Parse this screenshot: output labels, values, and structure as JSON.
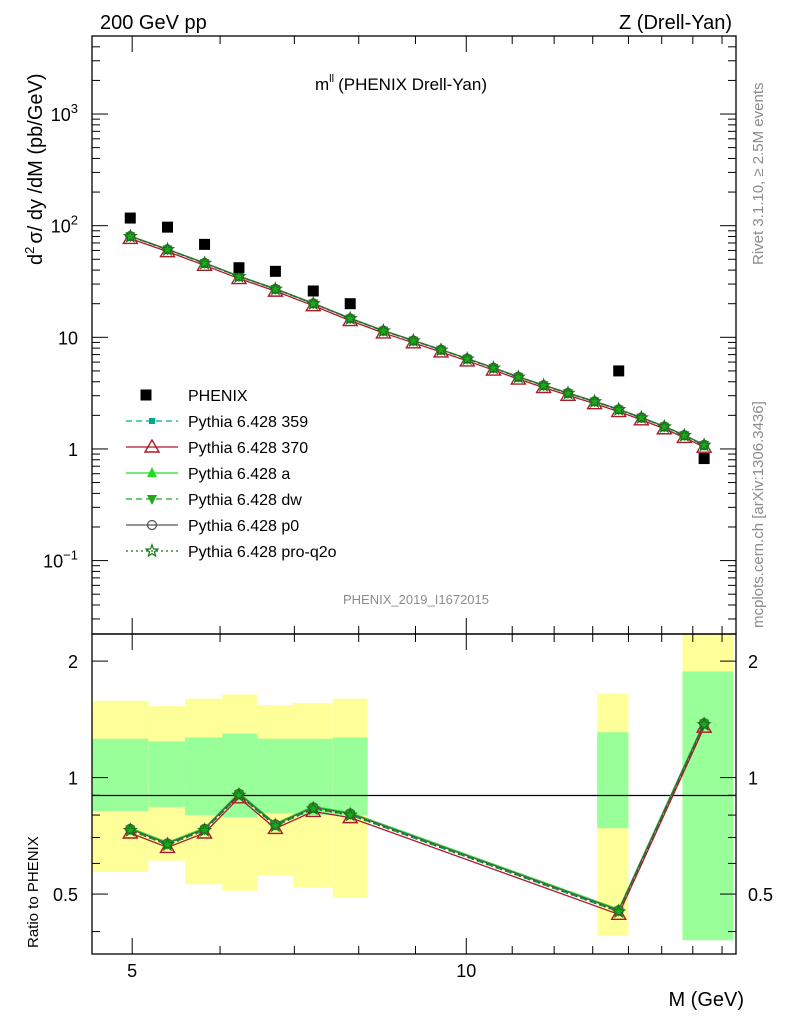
{
  "header": {
    "left": "200 GeV pp",
    "right": "Z (Drell-Yan)"
  },
  "side": {
    "rivet": "Rivet 3.1.10, ≥ 2.5M events",
    "mcplots": "mcplots.cern.ch [arXiv:1306.3436]"
  },
  "chart_data": [
    {
      "type": "scatter",
      "title": "m",
      "title_sup": "ll",
      "title_suffix": "(PHENIX Drell-Yan)",
      "watermark": "PHENIX_2019_I1672015",
      "xlabel": "M (GeV)",
      "ylabel": "d",
      "ylabel_sup": "2",
      "ylabel_rest": "σ/ dy /dM (pb/GeV)",
      "xscale": "log",
      "yscale": "log",
      "xlim": [
        4.6,
        17.5
      ],
      "ylim": [
        0.022,
        5000
      ],
      "xticks": [
        5,
        10
      ],
      "xtick_labels": [
        "5",
        "10"
      ],
      "yticks": [
        {
          "value": 1000,
          "base": "10",
          "exp": "3"
        },
        {
          "value": 100,
          "base": "10",
          "exp": "2"
        },
        {
          "value": 10,
          "base": "10",
          "exp": ""
        },
        {
          "value": 1,
          "base": "1",
          "exp": ""
        },
        {
          "value": 0.1,
          "base": "10",
          "exp": "−1"
        }
      ],
      "legend_position": "center-left",
      "data": {
        "name": "PHENIX",
        "x": [
          4.98,
          5.38,
          5.81,
          6.24,
          6.73,
          7.28,
          7.86,
          13.72,
          16.38
        ],
        "y": [
          117,
          97,
          68,
          42,
          39,
          26,
          20,
          5.0,
          0.82
        ]
      },
      "series": [
        {
          "name": "Pythia 6.428 359",
          "color": "#00aa88",
          "line": "dashed",
          "marker": "square-small"
        },
        {
          "name": "Pythia 6.428 370",
          "color": "#aa1a2a",
          "line": "solid",
          "marker": "triangle-open"
        },
        {
          "name": "Pythia 6.428 a",
          "color": "#22dd22",
          "line": "solid",
          "marker": "triangle-filled"
        },
        {
          "name": "Pythia 6.428 dw",
          "color": "#1aaa1a",
          "line": "dashed",
          "marker": "triangle-down"
        },
        {
          "name": "Pythia 6.428 p0",
          "color": "#555555",
          "line": "solid",
          "marker": "circle-open"
        },
        {
          "name": "Pythia 6.428 pro-q2o",
          "color": "#117711",
          "line": "dotted",
          "marker": "star"
        }
      ],
      "mc_x": [
        4.98,
        5.38,
        5.81,
        6.24,
        6.73,
        7.28,
        7.86,
        8.42,
        8.96,
        9.49,
        10.02,
        10.58,
        11.14,
        11.74,
        12.35,
        13.05,
        13.72,
        14.38,
        15.08,
        15.72,
        16.38
      ],
      "mc_y": [
        80,
        61,
        46,
        35,
        27,
        20,
        14.7,
        11.4,
        9.3,
        7.7,
        6.4,
        5.3,
        4.4,
        3.7,
        3.15,
        2.65,
        2.25,
        1.9,
        1.58,
        1.32,
        1.08
      ]
    },
    {
      "type": "scatter",
      "ylabel": "Ratio to PHENIX",
      "xlabel": "M (GeV)",
      "xscale": "log",
      "ylim": [
        0.35,
        2.35
      ],
      "yticks": [
        0.5,
        1,
        2
      ],
      "ytick_labels": [
        "0.5",
        "1",
        "2"
      ],
      "bands": [
        {
          "x": [
            4.6,
            5.17
          ],
          "inner": [
            0.82,
            1.26
          ],
          "outer": [
            0.57,
            1.58
          ]
        },
        {
          "x": [
            5.17,
            5.58
          ],
          "inner": [
            0.84,
            1.24
          ],
          "outer": [
            0.61,
            1.53
          ]
        },
        {
          "x": [
            5.58,
            6.03
          ],
          "inner": [
            0.8,
            1.27
          ],
          "outer": [
            0.53,
            1.6
          ]
        },
        {
          "x": [
            6.03,
            6.48
          ],
          "inner": [
            0.79,
            1.3
          ],
          "outer": [
            0.51,
            1.64
          ]
        },
        {
          "x": [
            6.48,
            6.98
          ],
          "inner": [
            0.81,
            1.26
          ],
          "outer": [
            0.56,
            1.54
          ]
        },
        {
          "x": [
            6.98,
            7.58
          ],
          "inner": [
            0.8,
            1.26
          ],
          "outer": [
            0.52,
            1.56
          ]
        },
        {
          "x": [
            7.58,
            8.15
          ],
          "inner": [
            0.8,
            1.27
          ],
          "outer": [
            0.49,
            1.6
          ]
        },
        {
          "x": [
            13.12,
            14.0
          ],
          "inner": [
            0.74,
            1.31
          ],
          "outer": [
            0.39,
            1.65
          ]
        },
        {
          "x": [
            15.66,
            17.4
          ],
          "inner": [
            0.38,
            1.88
          ],
          "outer": [
            0.38,
            2.35
          ]
        }
      ],
      "ratio_x": [
        4.98,
        5.38,
        5.81,
        6.24,
        6.73,
        7.28,
        7.86,
        13.72,
        16.38
      ],
      "ratio_y": [
        0.73,
        0.67,
        0.73,
        0.9,
        0.75,
        0.83,
        0.8,
        0.45,
        1.37
      ]
    }
  ]
}
